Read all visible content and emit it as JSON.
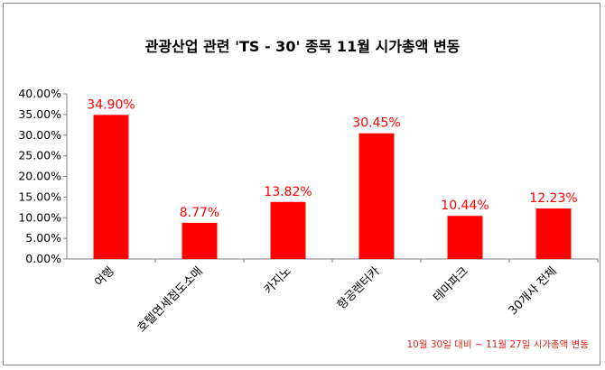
{
  "chart_data": {
    "type": "bar",
    "title": "관광산업 관련 'TS - 30' 종목 11월 시가총액 변동",
    "categories": [
      "여행",
      "호텔면세점도소매",
      "카지노",
      "항공렌터카",
      "테마파크",
      "30개사 전체"
    ],
    "values": [
      34.9,
      8.77,
      13.82,
      30.45,
      10.44,
      12.23
    ],
    "data_labels": [
      "34.90%",
      "8.77%",
      "13.82%",
      "30.45%",
      "10.44%",
      "12.23%"
    ],
    "y_ticks": [
      "0.00%",
      "5.00%",
      "10.00%",
      "15.00%",
      "20.00%",
      "25.00%",
      "30.00%",
      "35.00%",
      "40.00%"
    ],
    "ylim": [
      0,
      40
    ],
    "bar_color": "#ff0000",
    "label_color": "#ff0000",
    "grid": false,
    "legend": "none",
    "note": "10월 30일 대비 ~ 11월 27일 시가총액 변동"
  }
}
